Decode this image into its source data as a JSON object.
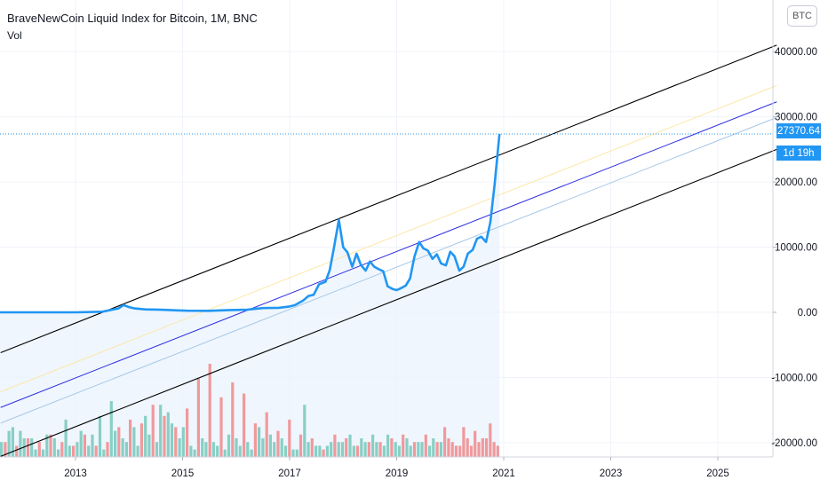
{
  "header": {
    "title": "BraveNewCoin Liquid Index for Bitcoin, 1M, BNC",
    "volume_label": "Vol",
    "currency_button": "BTC"
  },
  "price_axis": {
    "last_price": "27370.64",
    "countdown": "1d 19h"
  },
  "colors": {
    "price_line": "#2196f3",
    "area_fill": "#e8f2fc",
    "vol_up": "#88cfc5",
    "vol_down": "#f0999c",
    "channel_outer": "#000000",
    "channel_mid": "#2c2ce0",
    "channel_upper_inner": "#fde7a8",
    "channel_lower_inner": "#a7c7e7"
  },
  "chart_data": {
    "type": "line",
    "title": "BraveNewCoin Liquid Index for Bitcoin, 1M, BNC",
    "x_ticks": [
      "2013",
      "2015",
      "2017",
      "2019",
      "2021",
      "2023",
      "2025"
    ],
    "y_ticks": [
      40000,
      30000,
      20000,
      10000,
      0,
      -10000,
      -20000
    ],
    "y_tick_labels": [
      "40000.00",
      "30000.00",
      "20000.00",
      "10000.00",
      "0.00",
      "-10000.00",
      "-20000.00"
    ],
    "xlim": [
      2011.6,
      2026.1
    ],
    "ylim": [
      -22300,
      45500
    ],
    "grid": true,
    "last_value": 27370.64,
    "series": [
      {
        "x": [
          2011.5,
          2012.5,
          2013.0,
          2013.5,
          2013.8,
          2013.9,
          2014.0,
          2014.1,
          2014.3,
          2014.6,
          2014.9,
          2015.1,
          2015.5,
          2015.9,
          2016.2,
          2016.5,
          2016.8,
          2017.0,
          2017.1,
          2017.25,
          2017.35,
          2017.45,
          2017.55,
          2017.67,
          2017.75,
          2017.83,
          2017.92,
          2018.0,
          2018.08,
          2018.17,
          2018.25,
          2018.33,
          2018.42,
          2018.5,
          2018.58,
          2018.67,
          2018.75,
          2018.83,
          2018.92,
          2019.0,
          2019.08,
          2019.17,
          2019.25,
          2019.33,
          2019.42,
          2019.5,
          2019.58,
          2019.67,
          2019.75,
          2019.83,
          2019.92,
          2020.0,
          2020.08,
          2020.17,
          2020.25,
          2020.33,
          2020.42,
          2020.5,
          2020.58,
          2020.67,
          2020.75,
          2020.83,
          2020.92
        ],
        "y": [
          0,
          0,
          0,
          100,
          600,
          1100,
          800,
          600,
          450,
          400,
          300,
          250,
          230,
          350,
          400,
          650,
          700,
          900,
          1100,
          1800,
          2500,
          2700,
          4300,
          4700,
          6500,
          10000,
          14200,
          10000,
          9200,
          7000,
          9000,
          7300,
          6400,
          7800,
          7000,
          6600,
          6300,
          4000,
          3600,
          3400,
          3700,
          4100,
          5200,
          8500,
          10800,
          9800,
          9500,
          8200,
          8900,
          7500,
          7200,
          9300,
          8600,
          6400,
          7000,
          9000,
          9600,
          11300,
          11600,
          10800,
          13800,
          19700,
          27370
        ]
      }
    ],
    "volume": {
      "up": [
        4,
        7,
        8,
        7,
        5,
        5,
        2,
        2,
        6,
        5,
        2,
        10,
        3,
        4,
        7,
        3,
        6,
        11,
        2,
        15,
        7,
        5,
        4,
        8,
        3,
        11,
        6,
        4,
        14,
        12,
        9,
        5,
        8,
        3,
        2,
        5,
        4,
        4,
        3,
        2,
        6,
        5,
        3,
        4,
        2,
        8,
        5,
        6,
        4,
        5,
        3,
        2,
        2,
        14,
        4,
        3,
        3,
        3,
        4,
        4,
        4,
        6,
        3,
        5,
        4,
        6,
        4,
        3,
        6,
        4,
        3,
        5,
        3,
        4,
        4,
        3,
        5,
        4
      ],
      "down": [
        4,
        3,
        5,
        4,
        6,
        4,
        3,
        6,
        3,
        4,
        8,
        10,
        9,
        14,
        11,
        8,
        13,
        21,
        25,
        16,
        20,
        17,
        9,
        12,
        7,
        10,
        6,
        5,
        2,
        6,
        5,
        3,
        4,
        4,
        5,
        6,
        4,
        6,
        4,
        8,
        5,
        4,
        3,
        3,
        8,
        5,
        3,
        7,
        4,
        5,
        5,
        9,
        4,
        3
      ]
    }
  }
}
